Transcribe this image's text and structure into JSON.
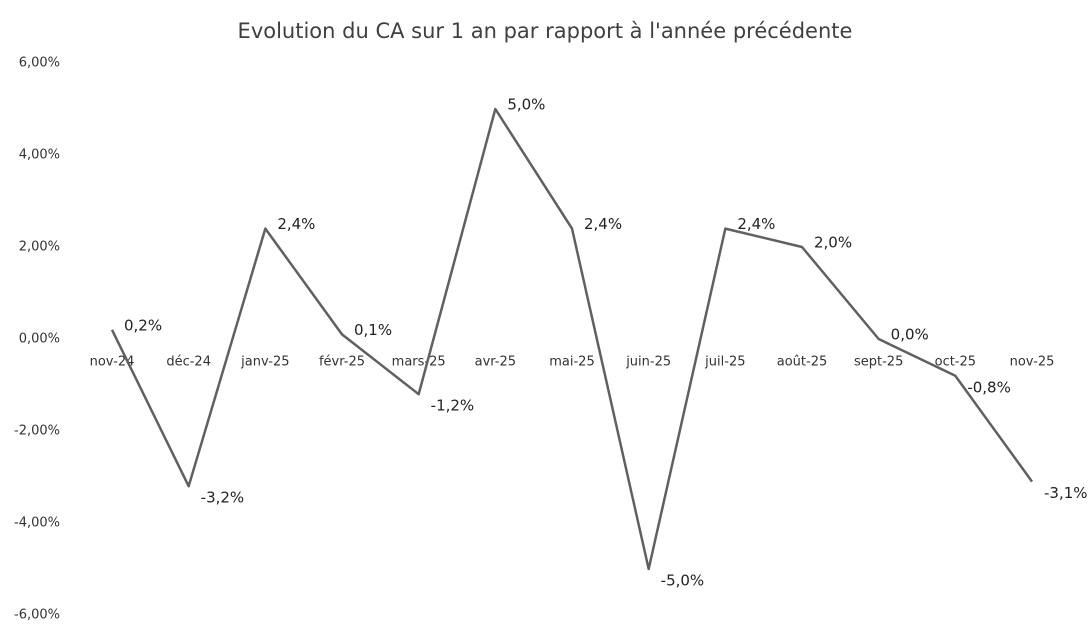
{
  "chart_data": {
    "type": "line",
    "title": "Evolution du CA sur 1 an par rapport à l'année précédente",
    "categories": [
      "nov-24",
      "déc-24",
      "janv-25",
      "févr-25",
      "mars-25",
      "avr-25",
      "mai-25",
      "juin-25",
      "juil-25",
      "août-25",
      "sept-25",
      "oct-25",
      "nov-25"
    ],
    "series": [
      {
        "name": "Evolution du CA",
        "color": "#606060",
        "values": [
          0.2,
          -3.2,
          2.4,
          0.1,
          -1.2,
          5.0,
          2.4,
          -5.0,
          2.4,
          2.0,
          0.0,
          -0.8,
          -3.1
        ],
        "value_labels": [
          "0,2%",
          "-3,2%",
          "2,4%",
          "0,1%",
          "-1,2%",
          "5,0%",
          "2,4%",
          "-5,0%",
          "2,4%",
          "2,0%",
          "0,0%",
          "-0,8%",
          "-3,1%"
        ]
      }
    ],
    "ylim": [
      -6,
      6
    ],
    "yticks": [
      {
        "value": -6,
        "label": "-6,00%"
      },
      {
        "value": -4,
        "label": "-4,00%"
      },
      {
        "value": -2,
        "label": "-2,00%"
      },
      {
        "value": 0,
        "label": "0,00%"
      },
      {
        "value": 2,
        "label": "2,00%"
      },
      {
        "value": 4,
        "label": "4,00%"
      },
      {
        "value": 6,
        "label": "6,00%"
      }
    ],
    "grid": false
  }
}
